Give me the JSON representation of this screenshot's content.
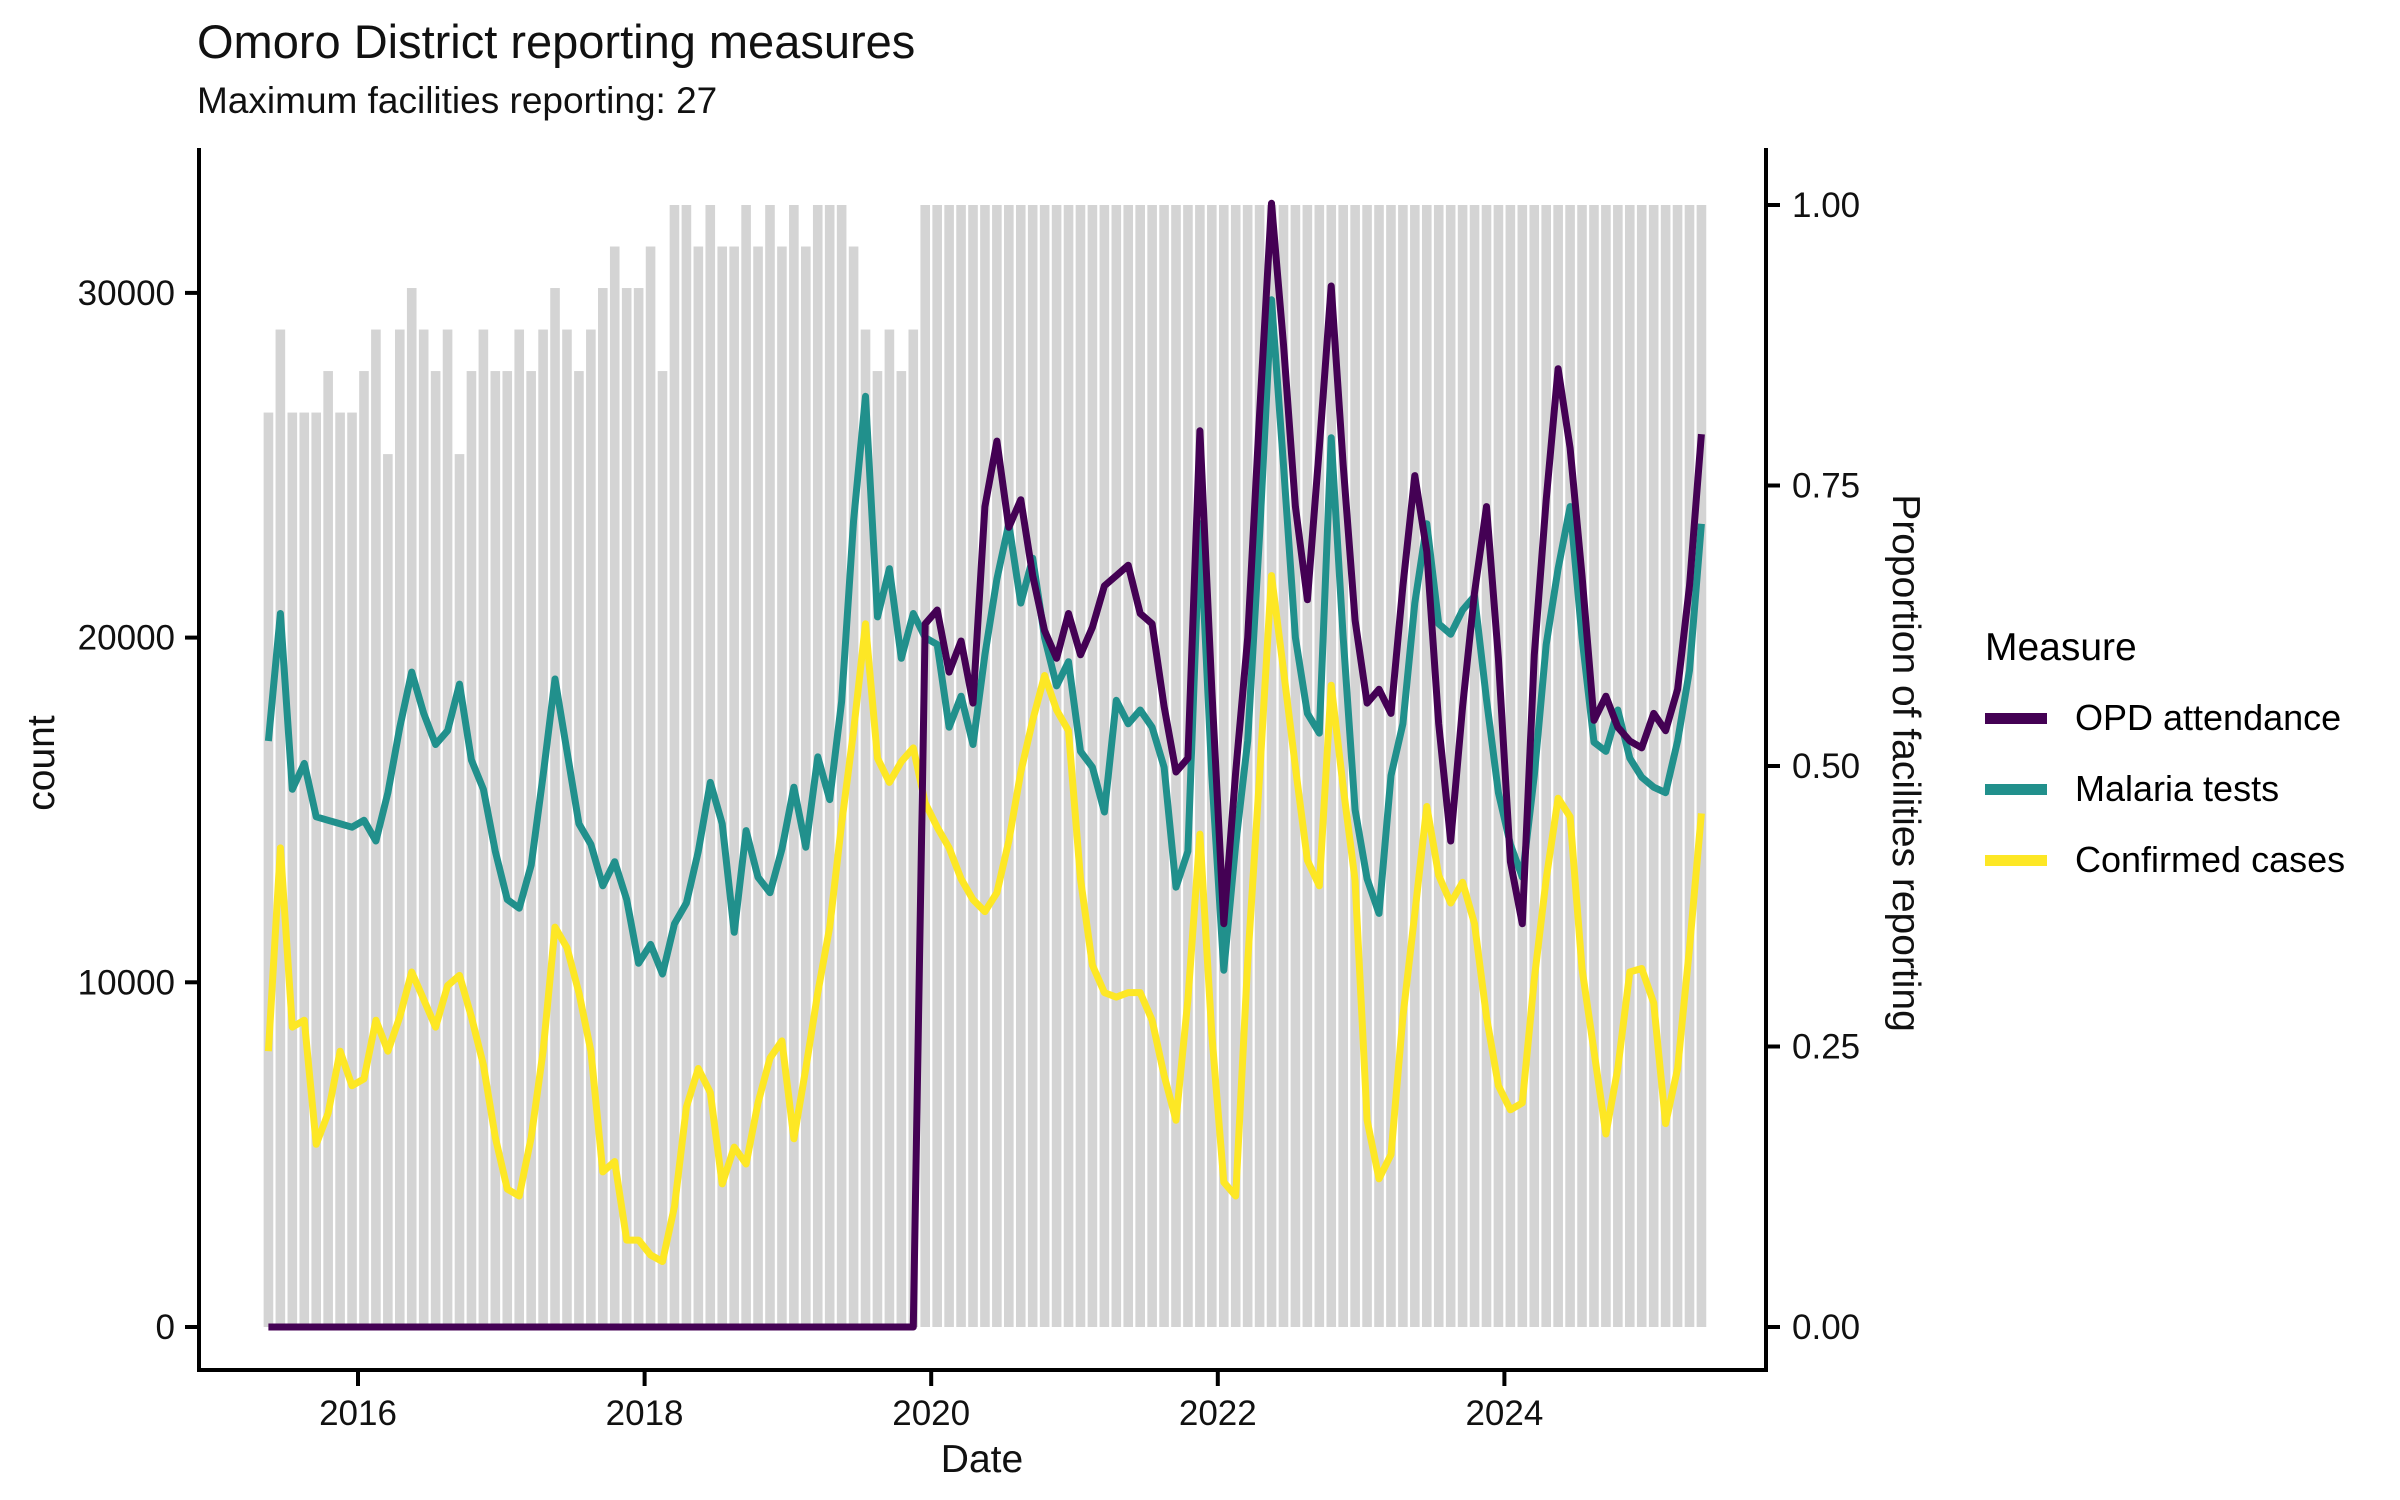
{
  "header": {
    "title": "Omoro District reporting measures",
    "subtitle": "Maximum facilities reporting: 27",
    "max_facilities_reporting": 27
  },
  "chart_data": {
    "type": "line+bar",
    "title": "Omoro District reporting measures",
    "subtitle": "Maximum facilities reporting: 27",
    "xlabel": "Date",
    "ylabel_left": "count",
    "ylabel_right": "Proportion of facilities reporting",
    "x_ticks": [
      "2016",
      "2018",
      "2020",
      "2022",
      "2024"
    ],
    "y_left_ticks": [
      0,
      10000,
      20000,
      30000
    ],
    "y_right_ticks": [
      "0.00",
      "0.25",
      "0.50",
      "0.75",
      "1.00"
    ],
    "left_axis_max_at_full_height": 32550,
    "grid": "off",
    "legend_position": "right",
    "legend": {
      "title": "Measure",
      "entries": [
        {
          "name": "OPD attendance",
          "color": "#440154"
        },
        {
          "name": "Malaria tests",
          "color": "#21908C"
        },
        {
          "name": "Confirmed cases",
          "color": "#FDE725"
        }
      ]
    },
    "colors": {
      "opd": "#440154",
      "malaria_tests": "#21908C",
      "confirmed_cases": "#FDE725",
      "bars": "#D4D4D4",
      "axis": "#000000"
    },
    "months": [
      "2015-05",
      "2015-06",
      "2015-07",
      "2015-08",
      "2015-09",
      "2015-10",
      "2015-11",
      "2015-12",
      "2016-01",
      "2016-02",
      "2016-03",
      "2016-04",
      "2016-05",
      "2016-06",
      "2016-07",
      "2016-08",
      "2016-09",
      "2016-10",
      "2016-11",
      "2016-12",
      "2017-01",
      "2017-02",
      "2017-03",
      "2017-04",
      "2017-05",
      "2017-06",
      "2017-07",
      "2017-08",
      "2017-09",
      "2017-10",
      "2017-11",
      "2017-12",
      "2018-01",
      "2018-02",
      "2018-03",
      "2018-04",
      "2018-05",
      "2018-06",
      "2018-07",
      "2018-08",
      "2018-09",
      "2018-10",
      "2018-11",
      "2018-12",
      "2019-01",
      "2019-02",
      "2019-03",
      "2019-04",
      "2019-05",
      "2019-06",
      "2019-07",
      "2019-08",
      "2019-09",
      "2019-10",
      "2019-11",
      "2019-12",
      "2020-01",
      "2020-02",
      "2020-03",
      "2020-04",
      "2020-05",
      "2020-06",
      "2020-07",
      "2020-08",
      "2020-09",
      "2020-10",
      "2020-11",
      "2020-12",
      "2021-01",
      "2021-02",
      "2021-03",
      "2021-04",
      "2021-05",
      "2021-06",
      "2021-07",
      "2021-08",
      "2021-09",
      "2021-10",
      "2021-11",
      "2021-12",
      "2022-01",
      "2022-02",
      "2022-03",
      "2022-04",
      "2022-05",
      "2022-06",
      "2022-07",
      "2022-08",
      "2022-09",
      "2022-10",
      "2022-11",
      "2022-12",
      "2023-01",
      "2023-02",
      "2023-03",
      "2023-04",
      "2023-05",
      "2023-06",
      "2023-07",
      "2023-08",
      "2023-09",
      "2023-10",
      "2023-11",
      "2023-12",
      "2024-01",
      "2024-02",
      "2024-03",
      "2024-04",
      "2024-05",
      "2024-06",
      "2024-07",
      "2024-08",
      "2024-09",
      "2024-10",
      "2024-11",
      "2024-12",
      "2025-01",
      "2025-02",
      "2025-03",
      "2025-04",
      "2025-05"
    ],
    "series": [
      {
        "name": "OPD attendance",
        "color": "#440154",
        "values": [
          0,
          0,
          0,
          0,
          0,
          0,
          0,
          0,
          0,
          0,
          0,
          0,
          0,
          0,
          0,
          0,
          0,
          0,
          0,
          0,
          0,
          0,
          0,
          0,
          0,
          0,
          0,
          0,
          0,
          0,
          0,
          0,
          0,
          0,
          0,
          0,
          0,
          0,
          0,
          0,
          0,
          0,
          0,
          0,
          0,
          0,
          0,
          0,
          0,
          0,
          0,
          0,
          0,
          0,
          0,
          20400,
          20800,
          19000,
          19900,
          18100,
          23800,
          25700,
          23200,
          24000,
          21800,
          20200,
          19400,
          20700,
          19500,
          20300,
          21500,
          21800,
          22100,
          20700,
          20400,
          18000,
          16100,
          16500,
          26000,
          18500,
          11700,
          16100,
          20000,
          26500,
          32600,
          28500,
          23800,
          21100,
          25500,
          30200,
          25000,
          20500,
          18100,
          18500,
          17800,
          21500,
          24700,
          22500,
          17500,
          14100,
          18000,
          21300,
          23800,
          19400,
          13500,
          11700,
          19500,
          24000,
          27800,
          25500,
          21800,
          17600,
          18300,
          17400,
          17000,
          16800,
          17800,
          17300,
          18500,
          21500,
          25900
        ]
      },
      {
        "name": "Malaria tests",
        "color": "#21908C",
        "values": [
          17000,
          20700,
          15600,
          16350,
          14800,
          14700,
          14600,
          14500,
          14700,
          14100,
          15500,
          17400,
          19000,
          17800,
          16900,
          17300,
          18650,
          16450,
          15600,
          13800,
          12400,
          12150,
          13400,
          16000,
          18800,
          16700,
          14600,
          14000,
          12800,
          13500,
          12400,
          10550,
          11100,
          10240,
          11700,
          12300,
          13800,
          15800,
          14600,
          11450,
          14400,
          13050,
          12600,
          13860,
          15660,
          13920,
          16540,
          15300,
          18140,
          23400,
          27000,
          20600,
          22000,
          19400,
          20700,
          20000,
          19800,
          17400,
          18300,
          16900,
          19500,
          21700,
          23300,
          21000,
          22300,
          20000,
          18600,
          19300,
          16700,
          16240,
          14940,
          18180,
          17500,
          17900,
          17400,
          16240,
          12760,
          13800,
          23300,
          16000,
          10350,
          14000,
          17000,
          23000,
          29800,
          25000,
          20000,
          17800,
          17230,
          25800,
          20000,
          15000,
          13000,
          12000,
          16000,
          17500,
          21000,
          23300,
          20400,
          20100,
          20800,
          21200,
          18200,
          15500,
          14000,
          13050,
          16000,
          19800,
          22000,
          23800,
          20000,
          16965,
          16700,
          17900,
          16500,
          15950,
          15660,
          15500,
          17000,
          19050,
          23300
        ]
      },
      {
        "name": "Confirmed cases",
        "color": "#FDE725",
        "values": [
          8000,
          13900,
          8700,
          8900,
          5300,
          6200,
          8000,
          7000,
          7200,
          8900,
          8000,
          9000,
          10300,
          9500,
          8700,
          9900,
          10200,
          9000,
          7600,
          5500,
          4000,
          3800,
          5500,
          8000,
          11600,
          11000,
          9700,
          8000,
          4500,
          4800,
          2520,
          2520,
          2090,
          1900,
          3500,
          6380,
          7500,
          6800,
          4150,
          5220,
          4730,
          6500,
          7800,
          8300,
          5460,
          7500,
          9700,
          11600,
          14600,
          17300,
          20400,
          16500,
          15800,
          16400,
          16800,
          15200,
          14500,
          13900,
          13000,
          12400,
          12050,
          12600,
          14100,
          16100,
          17600,
          18900,
          17900,
          17300,
          13000,
          10500,
          9700,
          9570,
          9700,
          9700,
          8900,
          7300,
          6000,
          9500,
          14300,
          8500,
          4200,
          3800,
          10600,
          16000,
          21800,
          19050,
          16240,
          13540,
          12800,
          18620,
          15660,
          12950,
          6000,
          4300,
          5000,
          9000,
          12000,
          15100,
          13100,
          12300,
          12900,
          11700,
          9000,
          7000,
          6300,
          6500,
          10100,
          13000,
          15340,
          14800,
          10400,
          8000,
          5600,
          7500,
          10300,
          10400,
          9400,
          5900,
          7500,
          11000,
          14900
        ]
      }
    ],
    "bars": {
      "name": "Proportion of facilities reporting",
      "color": "#D4D4D4",
      "values": [
        0.815,
        0.889,
        0.815,
        0.815,
        0.815,
        0.852,
        0.815,
        0.815,
        0.852,
        0.889,
        0.778,
        0.889,
        0.926,
        0.889,
        0.852,
        0.889,
        0.778,
        0.852,
        0.889,
        0.852,
        0.852,
        0.889,
        0.852,
        0.889,
        0.926,
        0.889,
        0.852,
        0.889,
        0.926,
        0.963,
        0.926,
        0.926,
        0.963,
        0.852,
        1,
        1,
        0.963,
        1,
        0.963,
        0.963,
        1,
        0.963,
        1,
        0.963,
        1,
        0.963,
        1,
        1,
        1,
        0.963,
        0.889,
        0.852,
        0.889,
        0.852,
        0.889,
        1,
        1,
        1,
        1,
        1,
        1,
        1,
        1,
        1,
        1,
        1,
        1,
        1,
        1,
        1,
        1,
        1,
        1,
        1,
        1,
        1,
        1,
        1,
        1,
        1,
        1,
        1,
        1,
        1,
        1,
        1,
        1,
        1,
        1,
        1,
        1,
        1,
        1,
        1,
        1,
        1,
        1,
        1,
        1,
        1,
        1,
        1,
        1,
        1,
        1,
        1,
        1,
        1,
        1,
        1,
        1,
        1,
        1,
        1,
        1,
        1,
        1,
        1,
        1,
        1,
        1
      ]
    }
  }
}
